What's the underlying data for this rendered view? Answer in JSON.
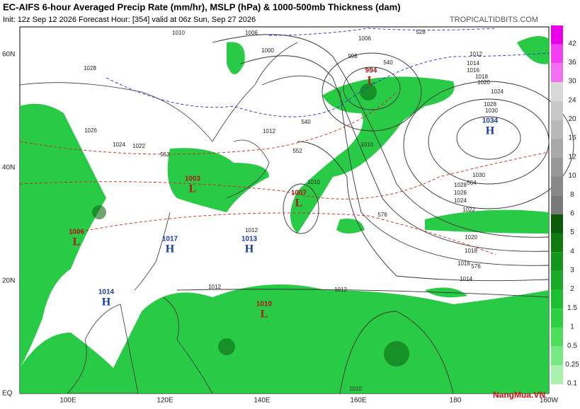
{
  "header": {
    "title": "EC-AIFS 6-hour Averaged Precip Rate (mm/hr), MSLP (hPa) & 1000-500mb Thickness (dam)",
    "subtitle": "Init: 12z Sep 12 2026   Forecast Hour: [354]   valid at 06z Sun, Sep 27 2026",
    "source": "TROPICALTIDBITS.COM"
  },
  "map": {
    "lon_labels": [
      "100E",
      "120E",
      "140E",
      "160E",
      "180",
      "160W"
    ],
    "lat_labels": [
      "60N",
      "40N",
      "20N",
      "EQ"
    ],
    "centers": [
      {
        "type": "L",
        "value": "994"
      },
      {
        "type": "H",
        "value": "1034"
      },
      {
        "type": "L",
        "value": "1007"
      },
      {
        "type": "L",
        "value": "1003"
      },
      {
        "type": "L",
        "value": "1006"
      },
      {
        "type": "H",
        "value": "1017"
      },
      {
        "type": "H",
        "value": "1013"
      },
      {
        "type": "H",
        "value": "1014"
      },
      {
        "type": "L",
        "value": "1010"
      }
    ],
    "isobar_labels": [
      "1010",
      "1006",
      "1000",
      "998",
      "1006",
      "1012",
      "1014",
      "1016",
      "1018",
      "1020",
      "1024",
      "1028",
      "1030",
      "1012",
      "1010",
      "1012",
      "1010",
      "1030",
      "1028",
      "1026",
      "1024",
      "1022",
      "1020",
      "1018",
      "1016",
      "1014",
      "1012",
      "1012",
      "1028",
      "1026",
      "1024",
      "1022",
      "1010"
    ],
    "thickness_labels": [
      "552",
      "552",
      "564",
      "576",
      "576",
      "540",
      "528",
      "540"
    ]
  },
  "colorbar": {
    "levels": [
      42,
      36,
      30,
      24,
      20,
      16,
      12,
      10,
      8,
      6,
      5,
      4,
      3,
      2,
      1.5,
      1,
      0.5,
      0.25,
      0.1
    ],
    "colors": [
      "#e800e8",
      "#f040f0",
      "#f070f0",
      "#d8d8d8",
      "#c8c8c8",
      "#b8b8b8",
      "#a8a8a8",
      "#989898",
      "#888888",
      "#787878",
      "#0a5a0a",
      "#0f7a0f",
      "#14961e",
      "#19aa28",
      "#1ebe32",
      "#2ccf40",
      "#4fdc5a",
      "#7ae882",
      "#a8f2ae"
    ]
  },
  "watermark": "NangMua.VN"
}
